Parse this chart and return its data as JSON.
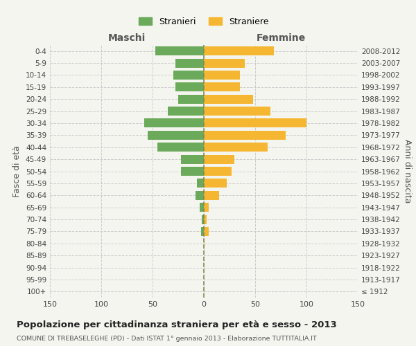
{
  "age_groups": [
    "0-4",
    "5-9",
    "10-14",
    "15-19",
    "20-24",
    "25-29",
    "30-34",
    "35-39",
    "40-44",
    "45-49",
    "50-54",
    "55-59",
    "60-64",
    "65-69",
    "70-74",
    "75-79",
    "80-84",
    "85-89",
    "90-94",
    "95-99",
    "100+"
  ],
  "birth_years": [
    "2008-2012",
    "2003-2007",
    "1998-2002",
    "1993-1997",
    "1988-1992",
    "1983-1987",
    "1978-1982",
    "1973-1977",
    "1968-1972",
    "1963-1967",
    "1958-1962",
    "1953-1957",
    "1948-1952",
    "1943-1947",
    "1938-1942",
    "1933-1937",
    "1928-1932",
    "1923-1927",
    "1918-1922",
    "1913-1917",
    "≤ 1912"
  ],
  "males": [
    47,
    28,
    30,
    28,
    25,
    35,
    58,
    55,
    45,
    22,
    22,
    7,
    8,
    4,
    2,
    3,
    0,
    0,
    0,
    0,
    0
  ],
  "females": [
    68,
    40,
    35,
    35,
    48,
    65,
    100,
    80,
    62,
    30,
    27,
    22,
    15,
    5,
    3,
    5,
    1,
    0,
    0,
    0,
    0
  ],
  "male_color": "#6aaa5a",
  "female_color": "#f5b731",
  "grid_color": "#cccccc",
  "centerline_color": "#888855",
  "bg_color": "#f5f5f0",
  "title": "Popolazione per cittadinanza straniera per età e sesso - 2013",
  "subtitle": "COMUNE DI TREBASELEGHE (PD) - Dati ISTAT 1° gennaio 2013 - Elaborazione TUTTITALIA.IT",
  "xlabel_left": "Maschi",
  "xlabel_right": "Femmine",
  "ylabel_left": "Fasce di età",
  "ylabel_right": "Anni di nascita",
  "xlim": 150,
  "legend_male": "Stranieri",
  "legend_female": "Straniere"
}
